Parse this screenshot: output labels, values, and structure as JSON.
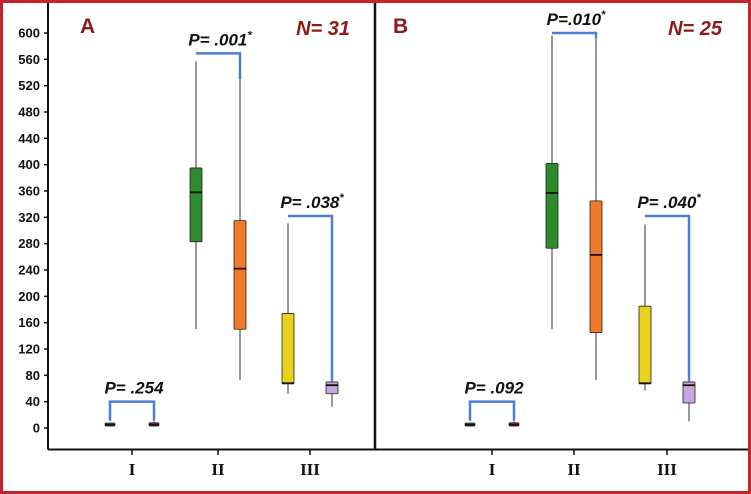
{
  "figure": {
    "colors": {
      "frame": "#c0262b",
      "divider": "#111111",
      "bracket": "#4a7fd4",
      "panel_letter": "#8b1a1a"
    }
  },
  "chart_data": [
    {
      "type": "box",
      "panel": "A",
      "n_label": "N= 31",
      "categories": [
        "I",
        "II",
        "III"
      ],
      "yticks": [
        0,
        40,
        80,
        120,
        160,
        200,
        240,
        280,
        320,
        360,
        400,
        440,
        480,
        520,
        560,
        600
      ],
      "ylim": [
        0,
        600
      ],
      "boxes": [
        {
          "category": "I",
          "color": "#2e8b2e",
          "min": 2,
          "q1": 3,
          "median": 5,
          "q3": 7,
          "max": 8
        },
        {
          "category": "I",
          "color": "#c21b43",
          "min": 2,
          "q1": 3,
          "median": 5,
          "q3": 8,
          "max": 10
        },
        {
          "category": "II",
          "color": "#2e8b2e",
          "min": 150,
          "q1": 283,
          "median": 358,
          "q3": 395,
          "max": 557
        },
        {
          "category": "II",
          "color": "#f07a2a",
          "min": 73,
          "q1": 150,
          "median": 242,
          "q3": 315,
          "max": 530
        },
        {
          "category": "III",
          "color": "#e8d21a",
          "min": 52,
          "q1": 67,
          "median": 68,
          "q3": 174,
          "max": 311
        },
        {
          "category": "III",
          "color": "#c9a6e0",
          "min": 32,
          "q1": 52,
          "median": 65,
          "q3": 70,
          "max": 72
        }
      ],
      "comparisons": [
        {
          "category": "I",
          "text": "P= .254",
          "star": "",
          "level": 40
        },
        {
          "category": "II",
          "text": "P= .001",
          "star": "*",
          "level": 569
        },
        {
          "category": "III",
          "text": "P= .038",
          "star": "*",
          "level": 322
        }
      ]
    },
    {
      "type": "box",
      "panel": "B",
      "n_label": "N= 25",
      "categories": [
        "I",
        "II",
        "III"
      ],
      "ylim": [
        0,
        600
      ],
      "boxes": [
        {
          "category": "I",
          "color": "#2e8b2e",
          "min": 2,
          "q1": 3,
          "median": 5,
          "q3": 7,
          "max": 8
        },
        {
          "category": "I",
          "color": "#c21b43",
          "min": 2,
          "q1": 3,
          "median": 5,
          "q3": 8,
          "max": 10
        },
        {
          "category": "II",
          "color": "#2e8b2e",
          "min": 150,
          "q1": 273,
          "median": 357,
          "q3": 402,
          "max": 596
        },
        {
          "category": "II",
          "color": "#f07a2a",
          "min": 73,
          "q1": 145,
          "median": 263,
          "q3": 345,
          "max": 592
        },
        {
          "category": "III",
          "color": "#e8d21a",
          "min": 57,
          "q1": 67,
          "median": 68,
          "q3": 185,
          "max": 309
        },
        {
          "category": "III",
          "color": "#c9a6e0",
          "min": 10,
          "q1": 38,
          "median": 65,
          "q3": 70,
          "max": 72
        }
      ],
      "comparisons": [
        {
          "category": "I",
          "text": "P= .092",
          "star": "",
          "level": 40
        },
        {
          "category": "II",
          "text": "P=.010",
          "star": "*",
          "level": 600
        },
        {
          "category": "III",
          "text": "P= .040",
          "star": "*",
          "level": 322
        }
      ]
    }
  ]
}
